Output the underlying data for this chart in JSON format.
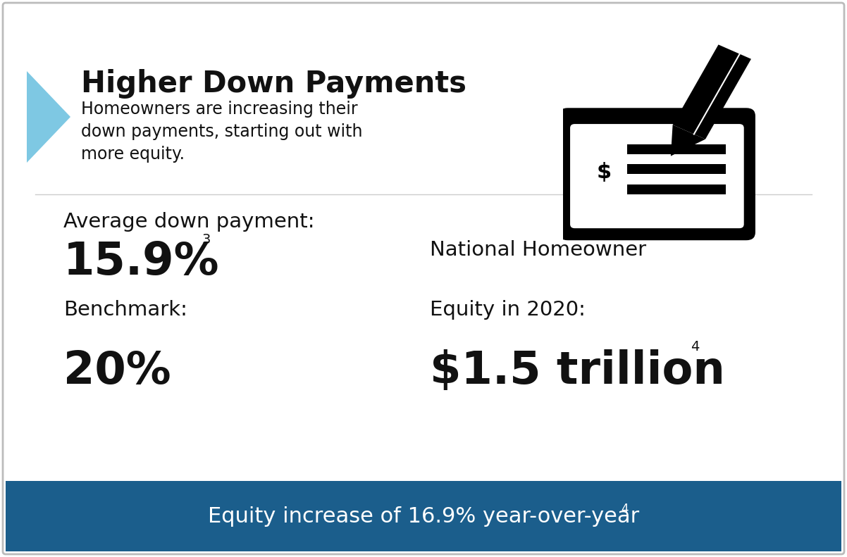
{
  "title": "Higher Down Payments",
  "subtitle_line1": "Homeowners are increasing their",
  "subtitle_line2": "down payments, starting out with",
  "subtitle_line3": "more equity.",
  "avg_label": "Average down payment:",
  "avg_value": "15.9%",
  "avg_superscript": "3",
  "benchmark_label": "Benchmark:",
  "benchmark_value": "20%",
  "equity_label_line1": "National Homeowner",
  "equity_label_line2": "Equity in 2020:",
  "equity_value": "$1.5 trillion",
  "equity_superscript": "4",
  "footer_text": "Equity increase of 16.9% year-over-year",
  "footer_superscript": "4",
  "bg_color": "#ffffff",
  "border_color": "#bbbbbb",
  "footer_bg_color": "#1b5e8c",
  "footer_text_color": "#ffffff",
  "arrow_color": "#7ec8e3",
  "title_color": "#111111",
  "body_color": "#111111",
  "title_fontsize": 30,
  "subtitle_fontsize": 17,
  "avg_label_fontsize": 21,
  "avg_value_fontsize": 46,
  "benchmark_label_fontsize": 21,
  "benchmark_value_fontsize": 46,
  "equity_label_fontsize": 21,
  "equity_value_fontsize": 46,
  "footer_fontsize": 22,
  "superscript_fontsize": 14
}
